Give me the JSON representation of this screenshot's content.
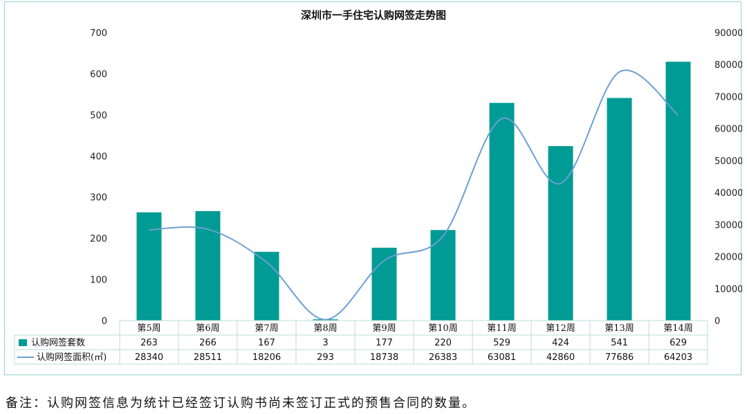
{
  "footnote": "备注：认购网签信息为统计已经签订认购书尚未签订正式的预售合同的数量。",
  "chart_data": {
    "type": "bar",
    "title": "深圳市一手住宅认购网签走势图",
    "categories": [
      "第5周",
      "第6周",
      "第7周",
      "第8周",
      "第9周",
      "第10周",
      "第11周",
      "第12周",
      "第13周",
      "第14周"
    ],
    "series": [
      {
        "name": "认购网签套数",
        "type": "bar",
        "axis": "left",
        "color": "#009b94",
        "values": [
          263,
          266,
          167,
          3,
          177,
          220,
          529,
          424,
          541,
          629
        ]
      },
      {
        "name": "认购网签面积(㎡)",
        "type": "line",
        "axis": "right",
        "color": "#6b9fd4",
        "values": [
          28340,
          28511,
          18206,
          293,
          18738,
          26383,
          63081,
          42860,
          77686,
          64203
        ]
      }
    ],
    "ylim_left": [
      0,
      700
    ],
    "yticks_left": [
      "0",
      "100",
      "200",
      "300",
      "400",
      "500",
      "600",
      "700"
    ],
    "ylim_right": [
      0,
      90000
    ],
    "yticks_right": [
      "0",
      "10000",
      "20000",
      "30000",
      "40000",
      "50000",
      "60000",
      "70000",
      "80000",
      "90000"
    ],
    "grid": false,
    "legend": "data table below the plot"
  }
}
